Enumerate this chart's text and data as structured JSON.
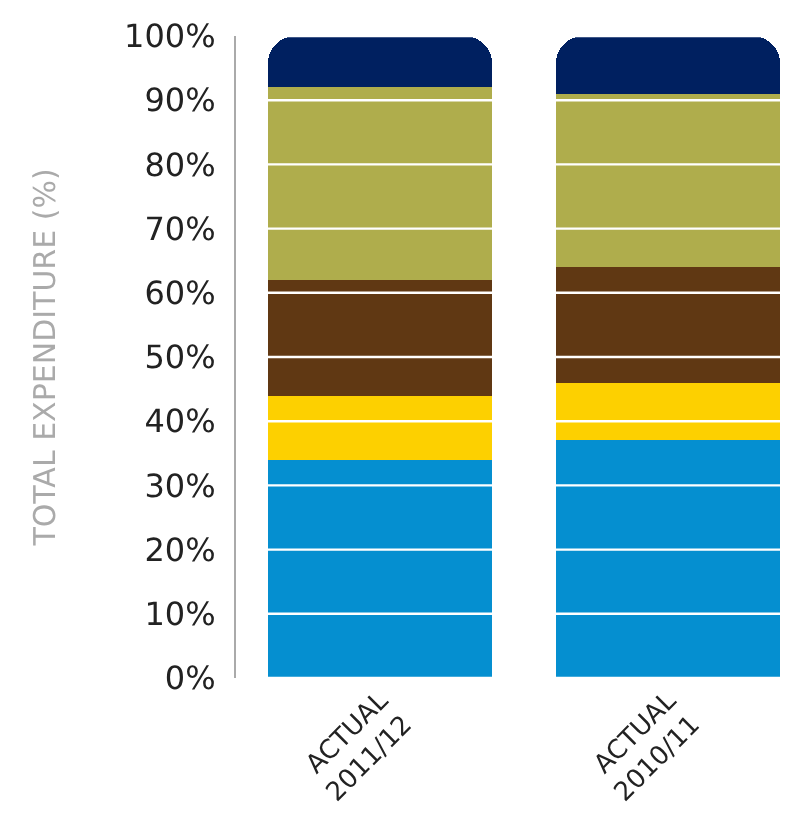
{
  "chart_data": {
    "type": "bar",
    "stacked": true,
    "ylabel": "TOTAL EXPENDITURE (%)",
    "categories": [
      "ACTUAL\n2011/12",
      "ACTUAL\n2010/11"
    ],
    "series": [
      {
        "color": "#058fd0",
        "values": [
          34,
          37
        ]
      },
      {
        "color": "#fdd000",
        "values": [
          10,
          9
        ]
      },
      {
        "color": "#603813",
        "values": [
          18,
          18
        ]
      },
      {
        "color": "#afad4c",
        "values": [
          30,
          27
        ]
      },
      {
        "color": "#002060",
        "values": [
          8,
          9
        ]
      }
    ],
    "ylim": [
      0,
      100
    ],
    "yticks": [
      {
        "value": 0,
        "label": "0%"
      },
      {
        "value": 10,
        "label": "10%"
      },
      {
        "value": 20,
        "label": "20%"
      },
      {
        "value": 30,
        "label": "30%"
      },
      {
        "value": 40,
        "label": "40%"
      },
      {
        "value": 50,
        "label": "50%"
      },
      {
        "value": 60,
        "label": "60%"
      },
      {
        "value": 70,
        "label": "70%"
      },
      {
        "value": 80,
        "label": "80%"
      },
      {
        "value": 90,
        "label": "90%"
      },
      {
        "value": 100,
        "label": "100%"
      }
    ],
    "grid": "y"
  }
}
